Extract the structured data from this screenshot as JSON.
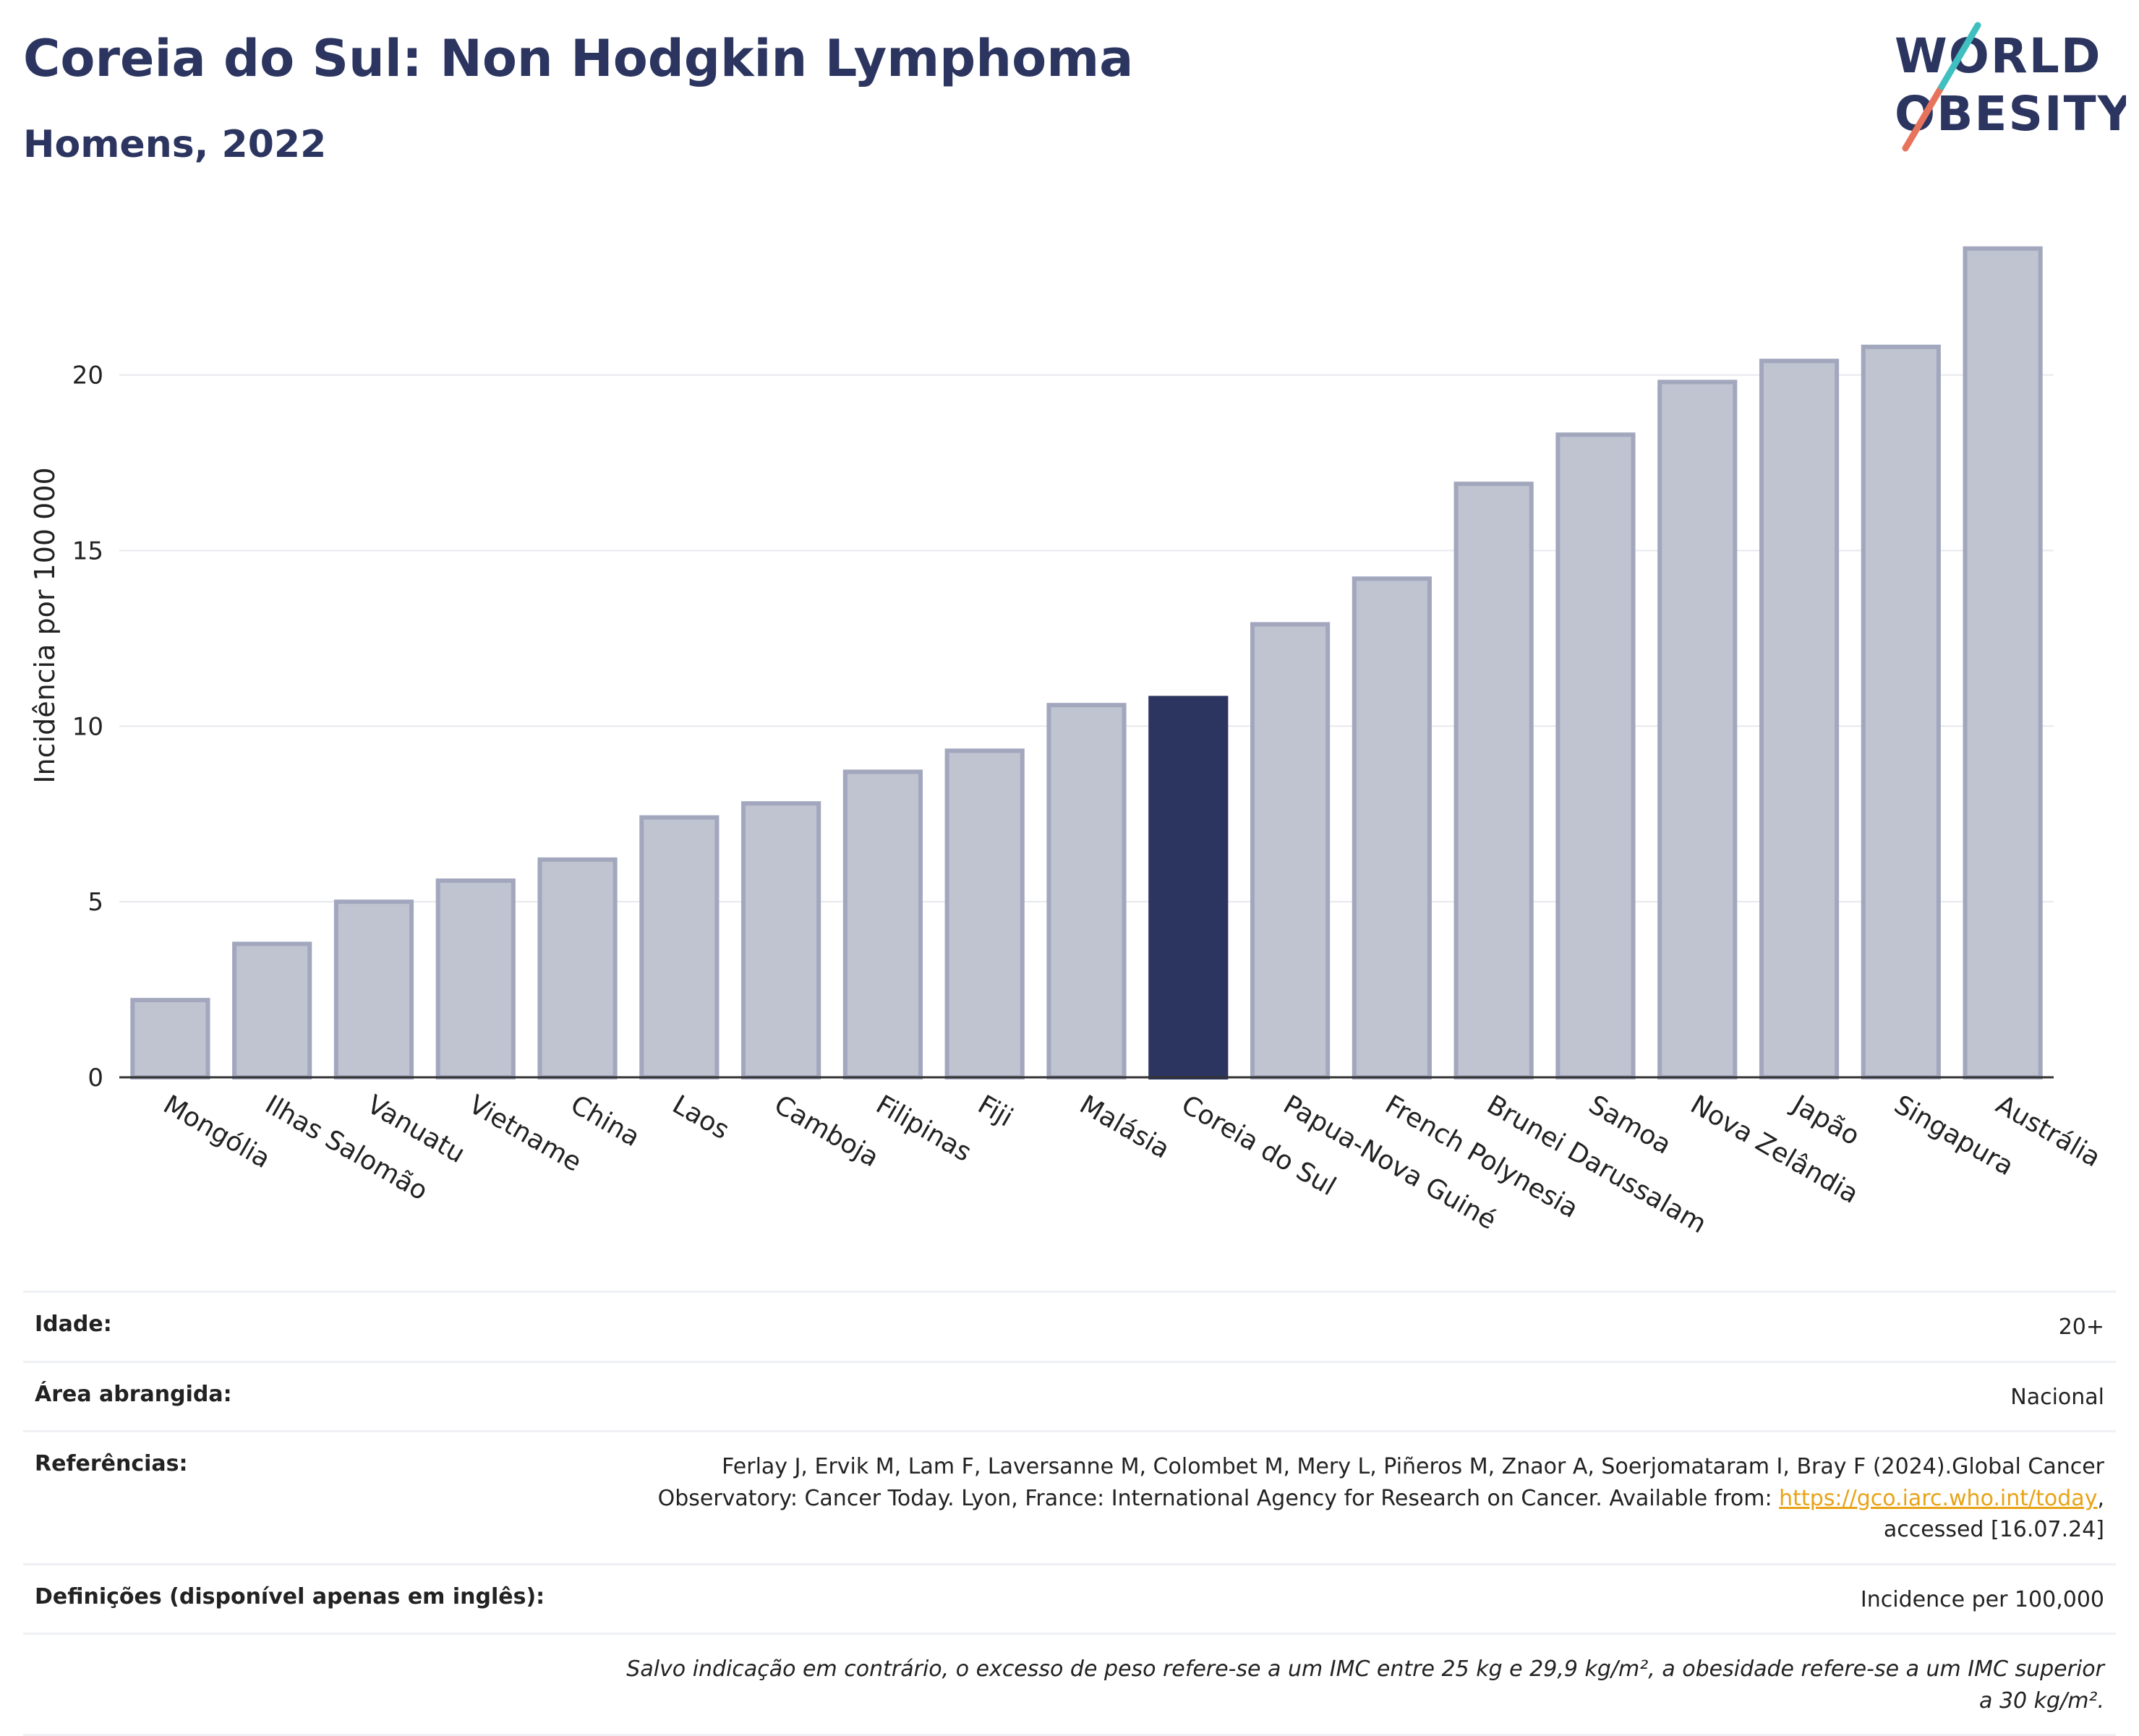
{
  "header": {
    "title": "Coreia do Sul: Non Hodgkin Lymphoma",
    "subtitle": "Homens, 2022"
  },
  "logo": {
    "line1": "WORLD",
    "line2": "OBESITY"
  },
  "chart_data": {
    "type": "bar",
    "ylabel": "Incidência por 100 000",
    "ylim": [
      0,
      24.5
    ],
    "yticks": [
      0,
      5,
      10,
      15,
      20
    ],
    "grid": true,
    "highlight": "Coreia do Sul",
    "categories": [
      "Mongólia",
      "Ilhas Salomão",
      "Vanuatu",
      "Vietname",
      "China",
      "Laos",
      "Camboja",
      "Filipinas",
      "Fiji",
      "Malásia",
      "Coreia do Sul",
      "Papua-Nova Guiné",
      "French Polynesia",
      "Brunei Darussalam",
      "Samoa",
      "Nova Zelândia",
      "Japão",
      "Singapura",
      "Austrália"
    ],
    "values": [
      2.2,
      3.8,
      5.0,
      5.6,
      6.2,
      7.4,
      7.8,
      8.7,
      9.3,
      10.6,
      10.8,
      12.9,
      14.2,
      16.9,
      18.3,
      19.8,
      20.4,
      20.8,
      23.6
    ],
    "colors": {
      "bar": "#c0c3d0",
      "bar_edge": "#a2a7bd",
      "highlight": "#2b3560",
      "axis": "#333333",
      "grid": "#e8e9ee"
    }
  },
  "info": {
    "age_label": "Idade:",
    "age_value": "20+",
    "area_label": "Área abrangida:",
    "area_value": "Nacional",
    "refs_label": "Referências:",
    "refs_text": "Ferlay J, Ervik M, Lam F, Laversanne M, Colombet M, Mery L, Piñeros M, Znaor A, Soerjomataram I, Bray F (2024).Global Cancer Observatory: Cancer Today. Lyon, France: International Agency for Research on Cancer. Available from: ",
    "refs_link": "https://gco.iarc.who.int/today",
    "refs_after": ", accessed [16.07.24]",
    "defs_label": "Definições (disponível apenas em inglês):",
    "defs_value": "Incidence per 100,000",
    "note": "Salvo indicação em contrário, o excesso de peso refere-se a um IMC entre 25 kg e 29,9 kg/m², a obesidade refere-se a um IMC superior a 30 kg/m²."
  }
}
